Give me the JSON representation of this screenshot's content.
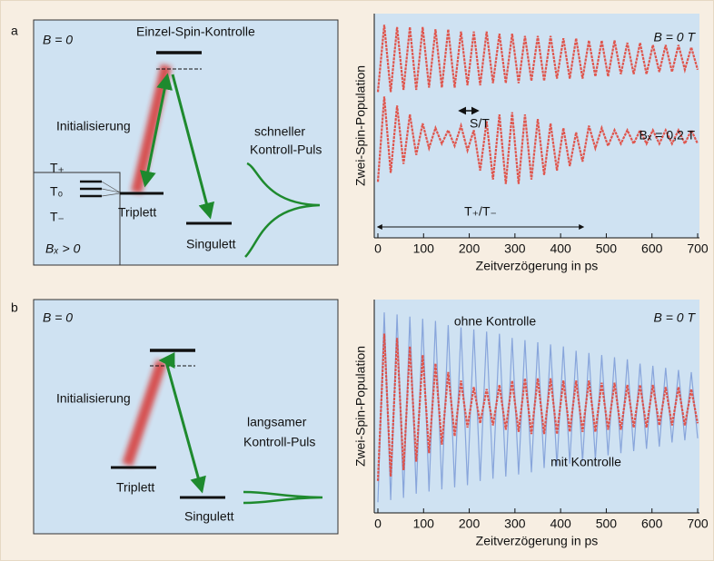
{
  "panels": [
    {
      "label": "a",
      "diagram": {
        "field": "B = 0",
        "title": "Einzel-Spin-Kontrolle",
        "init": "Initialisierung",
        "pulse": [
          "schneller",
          "Kontroll-Puls"
        ],
        "levels": [
          "T₊",
          "T₀",
          "T₋"
        ],
        "triplet": "Triplett",
        "singlet": "Singulett",
        "inset_field": "Bₓ > 0"
      }
    },
    {
      "label": "b",
      "diagram": {
        "field": "B = 0",
        "init": "Initialisierung",
        "pulse": [
          "langsamer",
          "Kontroll-Puls"
        ],
        "triplet": "Triplett",
        "singlet": "Singulett"
      }
    }
  ],
  "chart_data": [
    {
      "type": "line",
      "ylabel": "Zwei-Spin-Population",
      "xlabel": "Zeitverzögerung in ps",
      "xlim": [
        0,
        700
      ],
      "xticks": [
        0,
        100,
        200,
        300,
        400,
        500,
        600,
        700
      ],
      "ylim": [
        0,
        10
      ],
      "annotations": [
        "S/T",
        "T₊/T₋"
      ],
      "x": [
        0,
        14,
        28,
        42,
        56,
        70,
        84,
        98,
        112,
        126,
        140,
        154,
        168,
        182,
        196,
        210,
        224,
        238,
        252,
        266,
        280,
        294,
        308,
        322,
        336,
        350,
        364,
        378,
        392,
        406,
        420,
        434,
        448,
        462,
        476,
        490,
        504,
        518,
        532,
        546,
        560,
        574,
        588,
        602,
        616,
        630,
        644,
        658,
        672,
        686,
        700
      ],
      "series": [
        {
          "name": "B = 0 T",
          "color": "#e0473c",
          "values": [
            6.5,
            9.5,
            6.5,
            9.4,
            6.6,
            9.4,
            6.6,
            9.4,
            6.7,
            9.3,
            6.7,
            9.3,
            6.7,
            9.2,
            6.8,
            9.2,
            6.8,
            9.2,
            6.9,
            9.1,
            6.9,
            9.1,
            6.9,
            9.0,
            7.0,
            9.0,
            7.0,
            9.0,
            7.1,
            8.9,
            7.1,
            8.9,
            7.1,
            8.8,
            7.2,
            8.8,
            7.2,
            8.8,
            7.3,
            8.7,
            7.3,
            8.7,
            7.3,
            8.6,
            7.4,
            8.6,
            7.4,
            8.6,
            7.5,
            8.5,
            7.5
          ]
        },
        {
          "name": "Bₓ = 0,2 T",
          "color": "#e0473c",
          "values": [
            2.5,
            6.3,
            2.9,
            5.9,
            3.3,
            5.5,
            3.7,
            5.1,
            4.0,
            4.9,
            4.2,
            4.8,
            4.1,
            5.0,
            3.9,
            4.8,
            3.0,
            5.2,
            2.6,
            5.5,
            2.4,
            5.6,
            2.4,
            5.5,
            2.6,
            5.3,
            2.8,
            5.1,
            3.0,
            4.9,
            3.2,
            4.7,
            3.4,
            5.0,
            4.0,
            4.9,
            4.1,
            4.8,
            4.2,
            4.8,
            4.2,
            4.8,
            4.2,
            4.8,
            4.2,
            4.8,
            4.2,
            4.8,
            4.2,
            4.8,
            4.2
          ]
        }
      ]
    },
    {
      "type": "line",
      "ylabel": "Zwei-Spin-Population",
      "xlabel": "Zeitverzögerung in ps",
      "xlim": [
        0,
        700
      ],
      "xticks": [
        0,
        100,
        200,
        300,
        400,
        500,
        600,
        700
      ],
      "ylim": [
        0,
        10
      ],
      "annotations": [
        "B = 0 T"
      ],
      "x": [
        0,
        14,
        28,
        42,
        56,
        70,
        84,
        98,
        112,
        126,
        140,
        154,
        168,
        182,
        196,
        210,
        224,
        238,
        252,
        266,
        280,
        294,
        308,
        322,
        336,
        350,
        364,
        378,
        392,
        406,
        420,
        434,
        448,
        462,
        476,
        490,
        504,
        518,
        532,
        546,
        560,
        574,
        588,
        602,
        616,
        630,
        644,
        658,
        672,
        686,
        700
      ],
      "series": [
        {
          "name": "ohne Kontrolle",
          "color": "#7f9fd8",
          "values": [
            0.5,
            9.4,
            0.6,
            9.3,
            0.7,
            9.2,
            0.9,
            9.1,
            1.0,
            9.0,
            1.1,
            8.8,
            1.2,
            8.7,
            1.3,
            8.6,
            1.5,
            8.5,
            1.6,
            8.4,
            1.7,
            8.2,
            1.8,
            8.1,
            1.9,
            8.0,
            2.1,
            7.9,
            2.2,
            7.8,
            2.3,
            7.6,
            2.4,
            7.5,
            2.5,
            7.4,
            2.7,
            7.3,
            2.8,
            7.2,
            2.9,
            7.0,
            3.0,
            6.9,
            3.1,
            6.8,
            3.3,
            6.7,
            3.4,
            6.6,
            3.5
          ]
        },
        {
          "name": "mit Kontrolle",
          "color": "#e0473c",
          "values": [
            1.5,
            8.4,
            1.7,
            8.2,
            2.0,
            7.8,
            2.4,
            7.4,
            2.8,
            7.0,
            3.2,
            6.6,
            3.6,
            6.2,
            4.0,
            5.9,
            4.2,
            5.8,
            4.1,
            6.0,
            3.9,
            6.2,
            3.8,
            6.3,
            3.7,
            6.3,
            3.7,
            6.3,
            3.7,
            6.2,
            3.8,
            6.2,
            3.8,
            6.2,
            3.8,
            6.1,
            3.9,
            6.1,
            3.9,
            6.0,
            4.0,
            6.0,
            4.0,
            6.0,
            4.1,
            5.9,
            4.1,
            5.9,
            4.1,
            5.8,
            4.2
          ]
        }
      ]
    }
  ]
}
